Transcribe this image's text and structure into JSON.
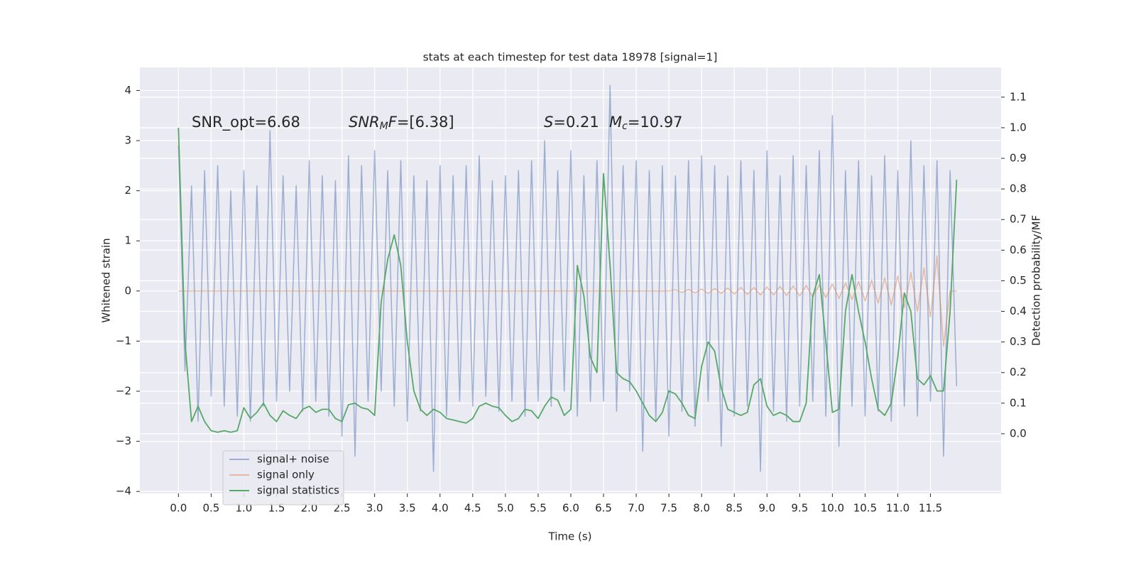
{
  "chart_data": {
    "type": "line",
    "title": "stats at each timestep for test data 18978 [signal=1]",
    "xlabel": "Time (s)",
    "ylabel": "Whitened strain",
    "y2label": "Detection probability/MF",
    "annotations": [
      {
        "parts": [
          {
            "text": "SNR_opt=6.68",
            "style": "normal"
          }
        ]
      },
      {
        "parts": [
          {
            "text": "SNR",
            "style": "italic"
          },
          {
            "text": "M",
            "style": "sub"
          },
          {
            "text": "F",
            "style": "italic"
          },
          {
            "text": "=[6.38]",
            "style": "normal"
          }
        ]
      },
      {
        "parts": [
          {
            "text": "S",
            "style": "italic"
          },
          {
            "text": "=0.21",
            "style": "normal"
          }
        ]
      },
      {
        "parts": [
          {
            "text": "M",
            "style": "italic"
          },
          {
            "text": "c",
            "style": "sub"
          },
          {
            "text": "=10.97",
            "style": "normal"
          }
        ]
      }
    ],
    "x": [
      0.0,
      0.1,
      0.2,
      0.3,
      0.4,
      0.5,
      0.6,
      0.7,
      0.8,
      0.9,
      1.0,
      1.1,
      1.2,
      1.3,
      1.4,
      1.5,
      1.6,
      1.7,
      1.8,
      1.9,
      2.0,
      2.1,
      2.2,
      2.3,
      2.4,
      2.5,
      2.6,
      2.7,
      2.8,
      2.9,
      3.0,
      3.1,
      3.2,
      3.3,
      3.4,
      3.5,
      3.6,
      3.7,
      3.8,
      3.9,
      4.0,
      4.1,
      4.2,
      4.3,
      4.4,
      4.5,
      4.6,
      4.7,
      4.8,
      4.9,
      5.0,
      5.1,
      5.2,
      5.3,
      5.4,
      5.5,
      5.6,
      5.7,
      5.8,
      5.9,
      6.0,
      6.1,
      6.2,
      6.3,
      6.4,
      6.5,
      6.6,
      6.7,
      6.8,
      6.9,
      7.0,
      7.1,
      7.2,
      7.3,
      7.4,
      7.5,
      7.6,
      7.7,
      7.8,
      7.9,
      8.0,
      8.1,
      8.2,
      8.3,
      8.4,
      8.5,
      8.6,
      8.7,
      8.8,
      8.9,
      9.0,
      9.1,
      9.2,
      9.3,
      9.4,
      9.5,
      9.6,
      9.7,
      9.8,
      9.9,
      10.0,
      10.1,
      10.2,
      10.3,
      10.4,
      10.5,
      10.6,
      10.7,
      10.8,
      10.9,
      11.0,
      11.1,
      11.2,
      11.3,
      11.4,
      11.5,
      11.6,
      11.7,
      11.8,
      11.9
    ],
    "series": [
      {
        "name": "signal+ noise",
        "color": "#4c72b0",
        "alpha": 0.5,
        "axis": "y",
        "values": [
          2.9,
          -1.6,
          2.1,
          -2.6,
          2.4,
          -2.1,
          2.5,
          -2.3,
          2.0,
          -2.5,
          2.4,
          -2.6,
          2.1,
          -2.3,
          3.2,
          -2.2,
          2.3,
          -2.0,
          2.1,
          -2.4,
          2.6,
          -2.2,
          2.3,
          -2.5,
          2.2,
          -2.9,
          2.7,
          -3.3,
          2.5,
          -2.2,
          2.8,
          -2.0,
          2.4,
          -2.3,
          2.6,
          -2.6,
          2.3,
          -2.4,
          2.2,
          -3.6,
          2.5,
          -2.5,
          2.3,
          -2.2,
          2.5,
          -2.3,
          2.7,
          -2.1,
          2.2,
          -2.4,
          2.3,
          -2.2,
          2.4,
          -2.5,
          2.6,
          -2.2,
          3.0,
          -2.3,
          2.4,
          -2.0,
          2.8,
          -2.5,
          2.3,
          -2.2,
          2.6,
          -2.2,
          4.1,
          -2.4,
          2.5,
          -2.0,
          2.6,
          -3.2,
          2.4,
          -2.6,
          2.5,
          -2.9,
          2.3,
          -2.4,
          2.6,
          -2.7,
          2.7,
          -2.2,
          2.5,
          -3.1,
          2.3,
          -2.5,
          2.6,
          -2.3,
          2.4,
          -3.6,
          2.8,
          -2.4,
          2.3,
          -2.6,
          2.7,
          -2.3,
          2.5,
          -2.2,
          2.8,
          -2.5,
          3.5,
          -3.1,
          2.4,
          -2.3,
          2.6,
          -2.5,
          2.3,
          -2.4,
          2.7,
          -2.6,
          2.4,
          -2.3,
          3.0,
          -2.5,
          2.5,
          -2.2,
          2.6,
          -3.3,
          2.4,
          -1.9
        ]
      },
      {
        "name": "signal only",
        "color": "#dd8452",
        "alpha": 0.5,
        "axis": "y",
        "values": [
          0,
          0,
          0,
          0,
          0,
          0,
          0,
          0,
          0,
          0,
          0,
          0,
          0,
          0,
          0,
          0,
          0,
          0,
          0,
          0,
          0,
          0,
          0,
          0,
          0,
          0,
          0,
          0,
          0,
          0,
          0,
          0,
          0,
          0,
          0,
          0,
          0,
          0,
          0,
          0,
          0,
          0,
          0,
          0,
          0,
          0,
          0,
          0,
          0,
          0,
          0,
          0,
          0,
          0,
          0,
          0,
          0,
          0,
          0,
          0,
          0,
          0,
          0,
          0,
          0,
          0,
          0,
          0,
          0,
          0,
          0,
          0,
          0,
          0,
          0,
          0,
          0.02,
          -0.03,
          0.03,
          -0.04,
          0.04,
          -0.05,
          0.05,
          -0.05,
          0.06,
          -0.06,
          0.07,
          -0.07,
          0.07,
          -0.08,
          0.08,
          -0.08,
          0.09,
          -0.09,
          0.1,
          -0.1,
          0.11,
          -0.12,
          0.12,
          -0.13,
          0.14,
          -0.15,
          0.16,
          -0.17,
          0.19,
          -0.2,
          0.22,
          -0.24,
          0.26,
          -0.28,
          0.3,
          -0.33,
          0.37,
          -0.41,
          0.46,
          -0.52,
          0.7,
          -1.1,
          0,
          0
        ]
      },
      {
        "name": "signal statistics",
        "color": "#55a868",
        "alpha": 1,
        "axis": "y2",
        "values": [
          1.0,
          0.3,
          0.04,
          0.09,
          0.04,
          0.01,
          0.005,
          0.01,
          0.005,
          0.01,
          0.085,
          0.05,
          0.07,
          0.1,
          0.06,
          0.04,
          0.075,
          0.06,
          0.05,
          0.08,
          0.09,
          0.07,
          0.08,
          0.08,
          0.05,
          0.04,
          0.095,
          0.1,
          0.085,
          0.08,
          0.06,
          0.43,
          0.57,
          0.65,
          0.55,
          0.3,
          0.14,
          0.08,
          0.06,
          0.08,
          0.07,
          0.05,
          0.045,
          0.04,
          0.035,
          0.05,
          0.09,
          0.1,
          0.09,
          0.085,
          0.06,
          0.04,
          0.05,
          0.08,
          0.075,
          0.05,
          0.09,
          0.12,
          0.11,
          0.06,
          0.08,
          0.55,
          0.45,
          0.25,
          0.2,
          0.85,
          0.55,
          0.2,
          0.18,
          0.17,
          0.14,
          0.1,
          0.06,
          0.04,
          0.07,
          0.14,
          0.13,
          0.1,
          0.06,
          0.05,
          0.22,
          0.3,
          0.27,
          0.15,
          0.08,
          0.07,
          0.06,
          0.07,
          0.16,
          0.18,
          0.09,
          0.06,
          0.07,
          0.06,
          0.04,
          0.04,
          0.1,
          0.45,
          0.52,
          0.3,
          0.07,
          0.08,
          0.4,
          0.52,
          0.4,
          0.3,
          0.18,
          0.08,
          0.06,
          0.1,
          0.25,
          0.46,
          0.4,
          0.18,
          0.16,
          0.19,
          0.14,
          0.14,
          0.4,
          0.83
        ]
      }
    ],
    "xlim": [
      -0.59,
      12.58
    ],
    "xticks": [
      {
        "value": 0,
        "label": "0.0"
      },
      0.5,
      {
        "value": 1,
        "label": "1.0"
      },
      1.5,
      {
        "value": 2,
        "label": "2.0"
      },
      2.5,
      {
        "value": 3,
        "label": "3.0"
      },
      3.5,
      {
        "value": 4,
        "label": "4.0"
      },
      4.5,
      {
        "value": 5,
        "label": "5.0"
      },
      5.5,
      {
        "value": 6,
        "label": "6.0"
      },
      6.5,
      {
        "value": 7,
        "label": "7.0"
      },
      7.5,
      {
        "value": 8,
        "label": "8.0"
      },
      8.5,
      {
        "value": 9,
        "label": "9.0"
      },
      9.5,
      {
        "value": 10,
        "label": "10.0"
      },
      10.5,
      {
        "value": 11,
        "label": "11.0"
      },
      11.5
    ],
    "ylim": [
      -4.04,
      4.46
    ],
    "yticks": [
      {
        "value": -4,
        "label": "−4"
      },
      {
        "value": -3,
        "label": "−3"
      },
      {
        "value": -2,
        "label": "−2"
      },
      {
        "value": -1,
        "label": "−1"
      },
      0,
      1,
      2,
      3,
      4
    ],
    "y2lim": [
      -0.195,
      1.197
    ],
    "y2ticks": [
      {
        "value": 0,
        "label": "0.0"
      },
      0.1,
      0.2,
      0.3,
      0.4,
      0.5,
      0.6,
      0.7,
      0.8,
      0.9,
      {
        "value": 1,
        "label": "1.0"
      },
      1.1
    ],
    "grid": true,
    "legend": "lower left"
  }
}
